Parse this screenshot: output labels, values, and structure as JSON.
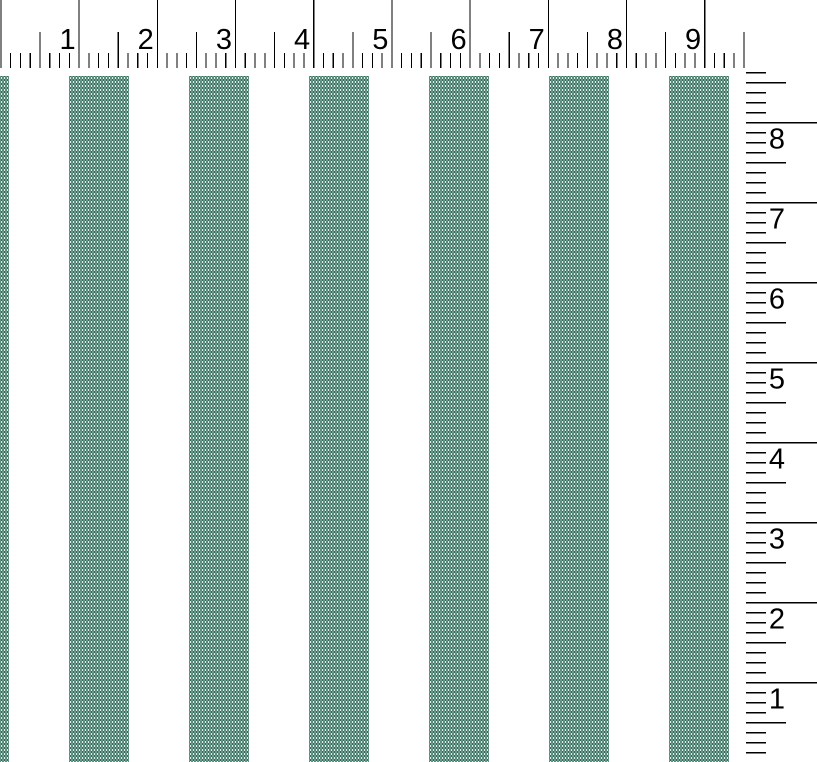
{
  "preview": {
    "description": "Green and white vertical stripe swatch with measuring rulers",
    "background_color": "#ffffff",
    "stripe": {
      "base_color": "#2e6957",
      "dot_color_light": "#ecf6f1",
      "dot_color_soft": "#bddacd"
    }
  },
  "top_ruler": {
    "unit_labels": [
      "1",
      "2",
      "3",
      "4",
      "5",
      "6",
      "7",
      "8",
      "9"
    ],
    "tick_color": "#000000"
  },
  "right_ruler": {
    "unit_labels": [
      "1",
      "2",
      "3",
      "4",
      "5",
      "6",
      "7",
      "8"
    ],
    "tick_color": "#000000"
  }
}
